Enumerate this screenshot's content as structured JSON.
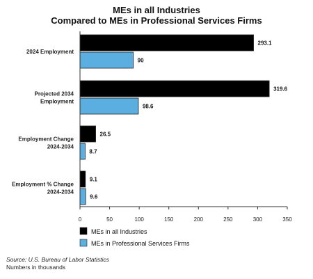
{
  "chart_data": {
    "type": "bar",
    "orientation": "horizontal",
    "title": [
      "MEs in all Industries",
      "Compared to MEs in Professional Services Firms"
    ],
    "categories": [
      [
        "2024 Employment"
      ],
      [
        "Projected 2034",
        "Employment"
      ],
      [
        "Employment Change",
        "2024-2034"
      ],
      [
        "Employment % Change",
        "2024-2034"
      ]
    ],
    "series": [
      {
        "name": "MEs in all Industries",
        "color": "#000000",
        "values": [
          293.1,
          319.6,
          26.5,
          9.1
        ]
      },
      {
        "name": "MEs in Professional Services Firms",
        "color": "#5aaee0",
        "values": [
          90,
          98.6,
          8.7,
          9.6
        ]
      }
    ],
    "data_labels": [
      [
        "293.1",
        "319.6",
        "26.5",
        "9.1"
      ],
      [
        "90",
        "98.6",
        "8.7",
        "9.6"
      ]
    ],
    "xlim": [
      0,
      350
    ],
    "xticks": [
      0,
      50,
      100,
      150,
      200,
      250,
      300,
      350
    ],
    "grid": false,
    "legend_position": "bottom-left"
  },
  "footer": {
    "source": "Source: U.S. Bureau of Labor Statistics",
    "units": "Numbers in thousands"
  }
}
